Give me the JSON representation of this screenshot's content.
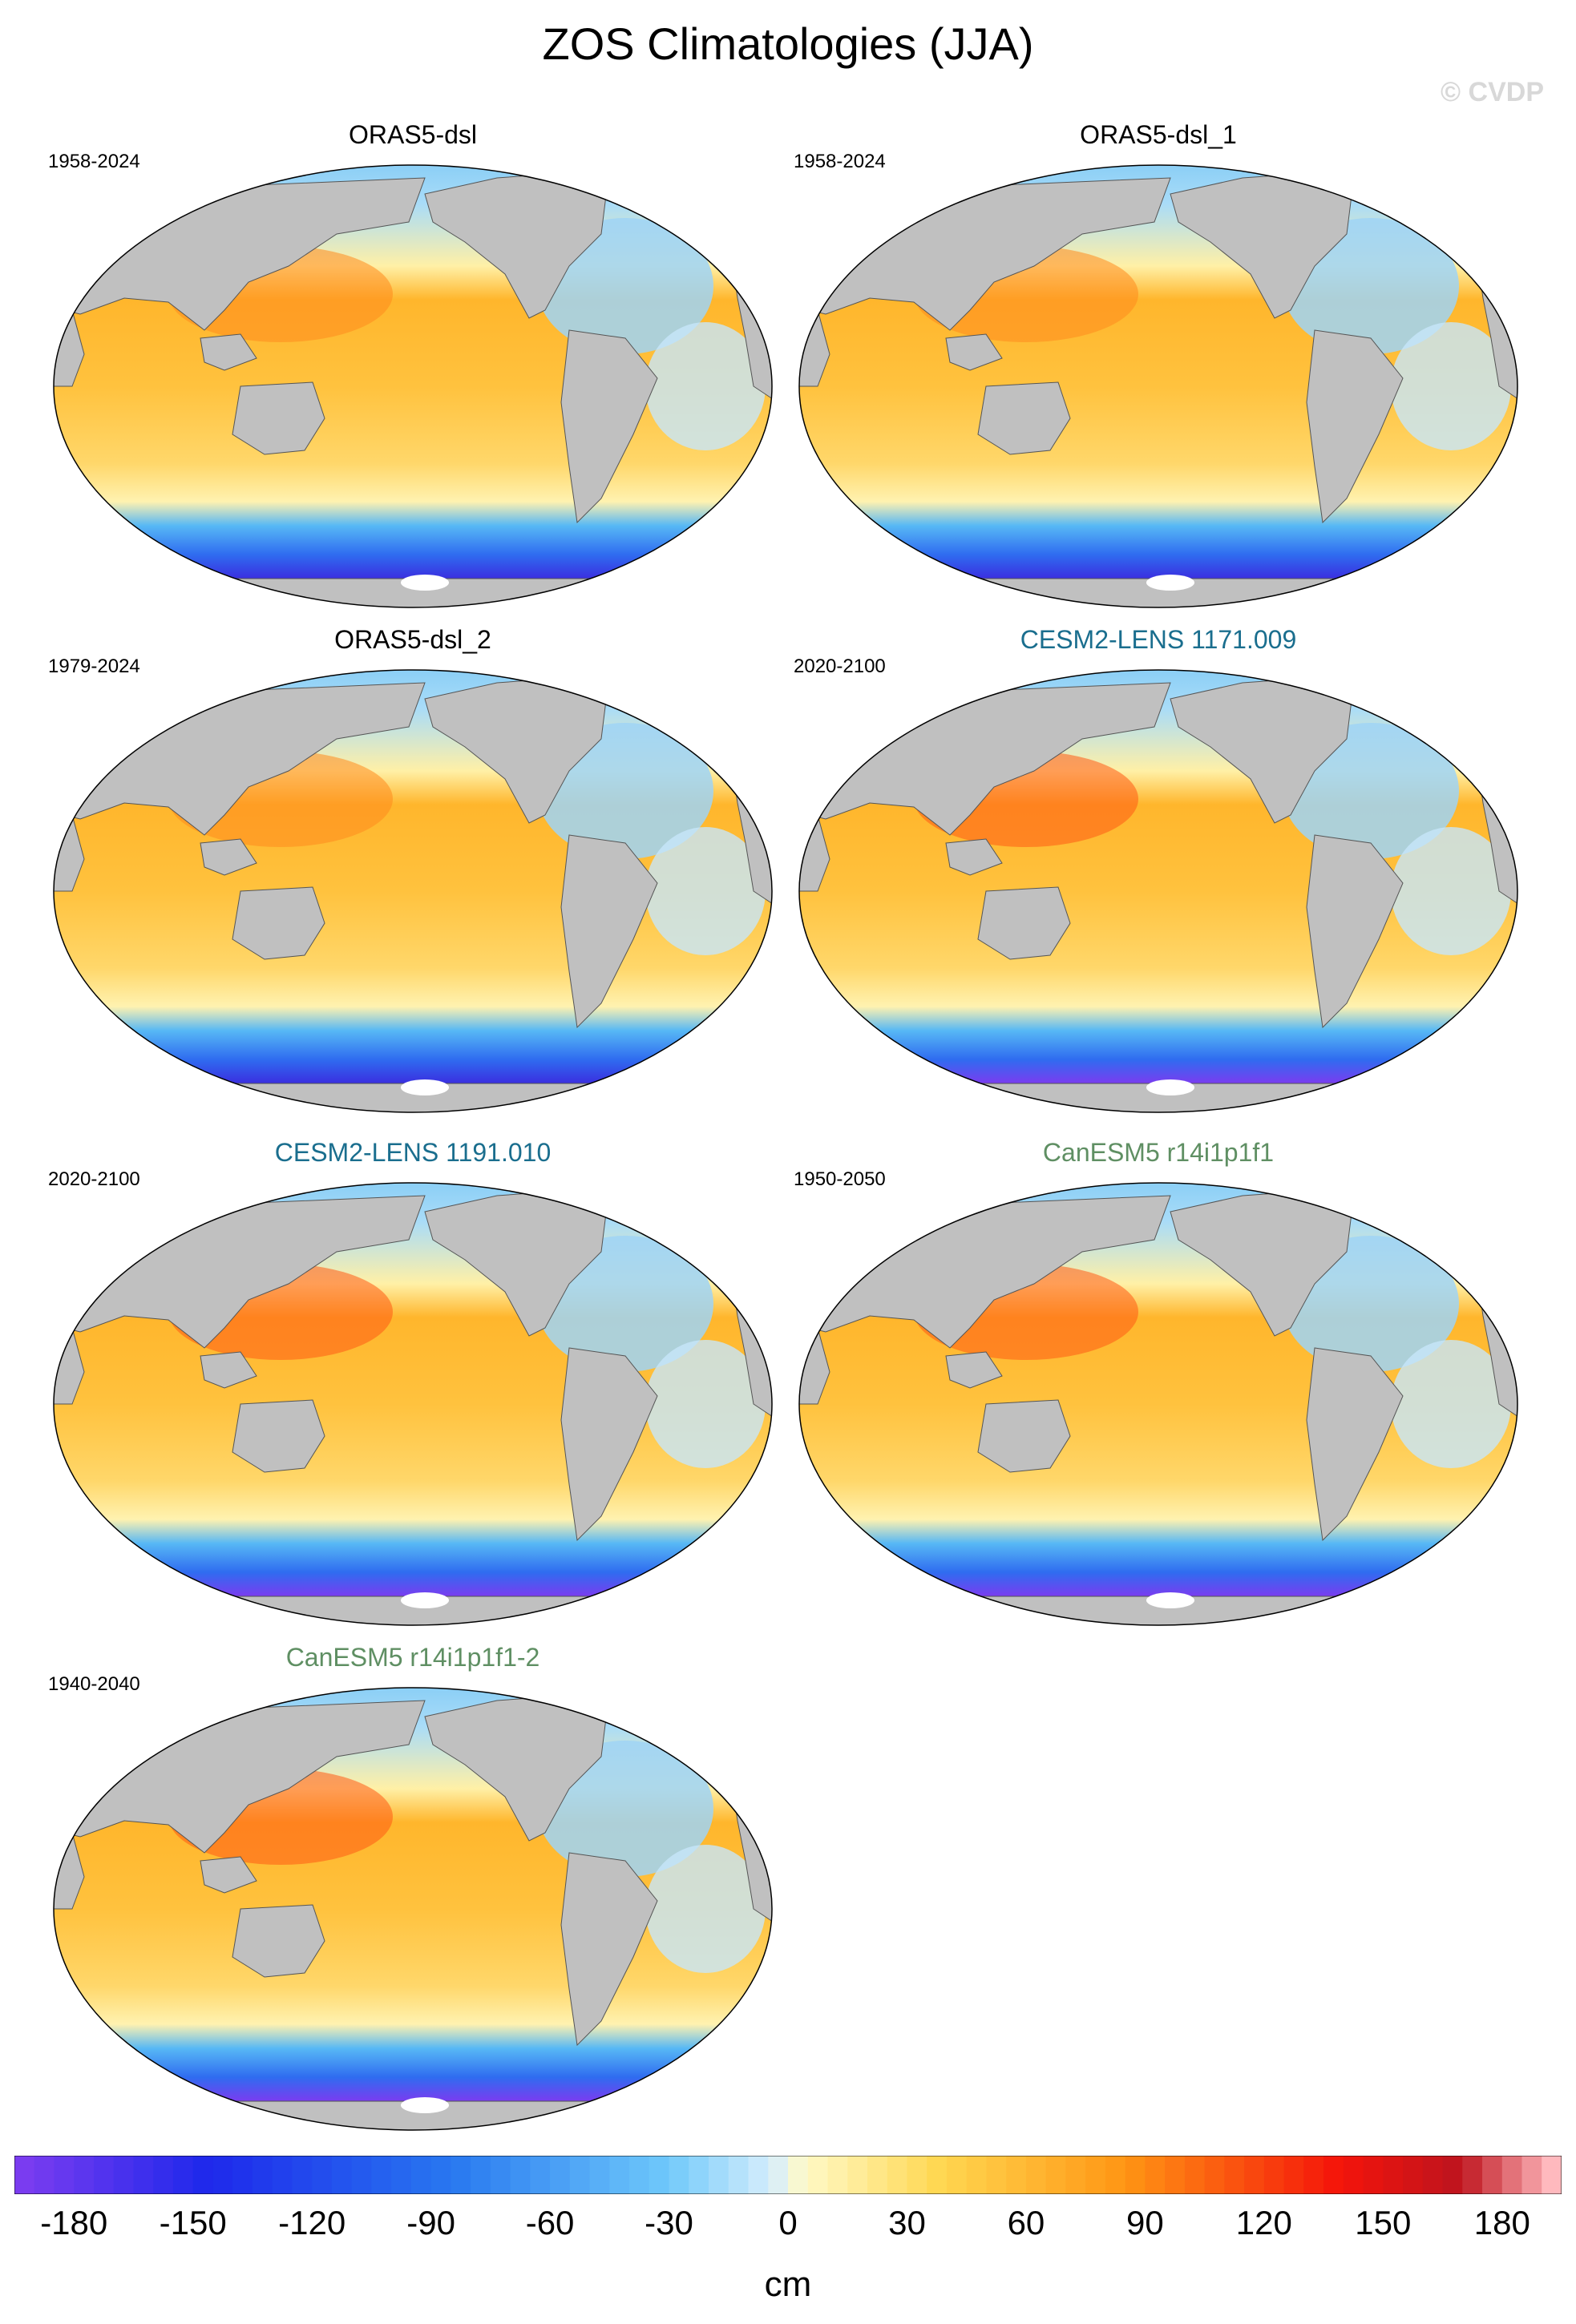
{
  "title": "ZOS Climatologies (JJA)",
  "watermark": "© CVDP",
  "colors": {
    "obs_label": "#000000",
    "cesm_label": "#1a6e8e",
    "canesm_label": "#5f8f63",
    "land": "#c0c0c0",
    "ocean_warm": "#ffb82a",
    "ocean_cold": "#7a3cf0"
  },
  "panels": [
    {
      "name": "ORAS5-dsl",
      "years": "1958-2024",
      "group": "obs"
    },
    {
      "name": "ORAS5-dsl_1",
      "years": "1958-2024",
      "group": "obs"
    },
    {
      "name": "ORAS5-dsl_2",
      "years": "1979-2024",
      "group": "obs"
    },
    {
      "name": "CESM2-LENS 1171.009",
      "years": "2020-2100",
      "group": "cesm"
    },
    {
      "name": "CESM2-LENS 1191.010",
      "years": "2020-2100",
      "group": "cesm"
    },
    {
      "name": "CanESM5 r14i1p1f1",
      "years": "1950-2050",
      "group": "canesm"
    },
    {
      "name": "CanESM5 r14i1p1f1-2",
      "years": "1940-2040",
      "group": "canesm"
    }
  ],
  "colorbar": {
    "units": "cm",
    "min": -195,
    "max": 195,
    "tick_labels": [
      "-180",
      "-150",
      "-120",
      "-90",
      "-60",
      "-30",
      "0",
      "30",
      "60",
      "90",
      "120",
      "150",
      "180"
    ],
    "tick_values": [
      -180,
      -150,
      -120,
      -90,
      -60,
      -30,
      0,
      30,
      60,
      90,
      120,
      150,
      180
    ]
  }
}
